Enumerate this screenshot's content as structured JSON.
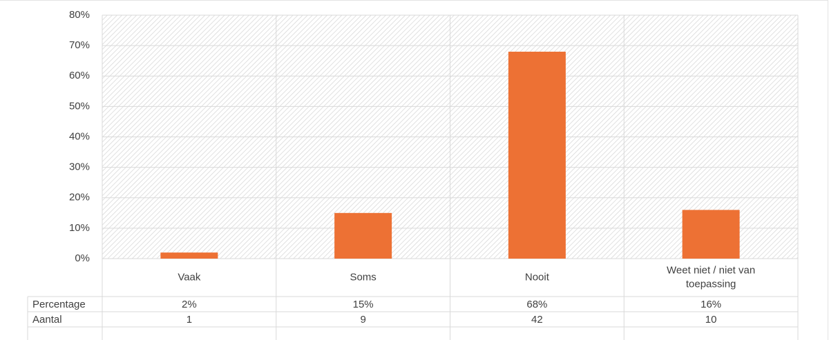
{
  "chart_data": {
    "type": "bar",
    "categories": [
      "Vaak",
      "Soms",
      "Nooit",
      "Weet niet / niet van toepassing"
    ],
    "category_lines": [
      [
        "Vaak"
      ],
      [
        "Soms"
      ],
      [
        "Nooit"
      ],
      [
        "Weet niet / niet van",
        "toepassing"
      ]
    ],
    "series": [
      {
        "values": [
          2,
          15,
          68,
          16
        ]
      }
    ],
    "ylim": [
      0,
      80
    ],
    "yticks": [
      "0%",
      "10%",
      "20%",
      "30%",
      "40%",
      "50%",
      "60%",
      "70%",
      "80%"
    ],
    "grid": true,
    "bar_color": "#ed7134",
    "data_table": {
      "rows": [
        {
          "label": "Percentage",
          "values": [
            "2%",
            "15%",
            "68%",
            "16%"
          ]
        },
        {
          "label": "Aantal",
          "values": [
            "1",
            "9",
            "42",
            "10"
          ]
        }
      ]
    }
  }
}
